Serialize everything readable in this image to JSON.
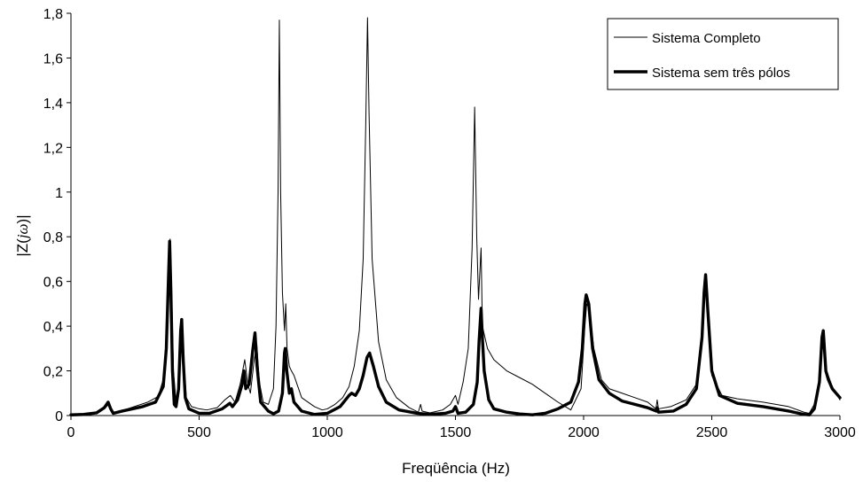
{
  "chart_data": {
    "type": "line",
    "title": "",
    "xlabel": "Freqüência (Hz)",
    "ylabel_parts": {
      "prefix": "|Z(",
      "j": "j",
      "omega": "ω",
      "suffix": ")|"
    },
    "xlim": [
      0,
      3000
    ],
    "ylim": [
      0,
      1.8
    ],
    "x_ticks": [
      {
        "value": 0,
        "label": "0"
      },
      {
        "value": 500,
        "label": "500"
      },
      {
        "value": 1000,
        "label": "1000"
      },
      {
        "value": 1500,
        "label": "1500"
      },
      {
        "value": 2000,
        "label": "2000"
      },
      {
        "value": 2500,
        "label": "2500"
      },
      {
        "value": 3000,
        "label": "3000"
      }
    ],
    "y_ticks": [
      {
        "value": 0,
        "label": "0"
      },
      {
        "value": 0.2,
        "label": "0,2"
      },
      {
        "value": 0.4,
        "label": "0,4"
      },
      {
        "value": 0.6,
        "label": "0,6"
      },
      {
        "value": 0.8,
        "label": "0,8"
      },
      {
        "value": 1.0,
        "label": "1"
      },
      {
        "value": 1.2,
        "label": "1,2"
      },
      {
        "value": 1.4,
        "label": "1,4"
      },
      {
        "value": 1.6,
        "label": "1,6"
      },
      {
        "value": 1.8,
        "label": "1,8"
      }
    ],
    "grid": false,
    "legend_position": "top-right",
    "series": [
      {
        "name": "Sistema Completo",
        "style": "thin",
        "color": "#000000",
        "points": [
          [
            0,
            0.003
          ],
          [
            50,
            0.006
          ],
          [
            100,
            0.013
          ],
          [
            130,
            0.03
          ],
          [
            147,
            0.05
          ],
          [
            160,
            0.02
          ],
          [
            175,
            0.012
          ],
          [
            220,
            0.03
          ],
          [
            300,
            0.06
          ],
          [
            340,
            0.085
          ],
          [
            365,
            0.18
          ],
          [
            375,
            0.35
          ],
          [
            383,
            0.72
          ],
          [
            387,
            0.79
          ],
          [
            393,
            0.55
          ],
          [
            400,
            0.2
          ],
          [
            410,
            0.06
          ],
          [
            420,
            0.1
          ],
          [
            430,
            0.35
          ],
          [
            434,
            0.42
          ],
          [
            440,
            0.25
          ],
          [
            450,
            0.08
          ],
          [
            470,
            0.04
          ],
          [
            500,
            0.03
          ],
          [
            530,
            0.025
          ],
          [
            570,
            0.035
          ],
          [
            600,
            0.07
          ],
          [
            622,
            0.09
          ],
          [
            640,
            0.06
          ],
          [
            660,
            0.14
          ],
          [
            678,
            0.25
          ],
          [
            690,
            0.14
          ],
          [
            700,
            0.1
          ],
          [
            715,
            0.25
          ],
          [
            725,
            0.32
          ],
          [
            735,
            0.15
          ],
          [
            750,
            0.06
          ],
          [
            770,
            0.05
          ],
          [
            790,
            0.12
          ],
          [
            800,
            0.4
          ],
          [
            808,
            1.0
          ],
          [
            813,
            1.77
          ],
          [
            818,
            1.0
          ],
          [
            825,
            0.55
          ],
          [
            833,
            0.38
          ],
          [
            838,
            0.5
          ],
          [
            843,
            0.3
          ],
          [
            852,
            0.22
          ],
          [
            860,
            0.2
          ],
          [
            870,
            0.18
          ],
          [
            900,
            0.08
          ],
          [
            950,
            0.04
          ],
          [
            980,
            0.025
          ],
          [
            1000,
            0.03
          ],
          [
            1030,
            0.05
          ],
          [
            1060,
            0.08
          ],
          [
            1085,
            0.13
          ],
          [
            1105,
            0.22
          ],
          [
            1125,
            0.38
          ],
          [
            1140,
            0.7
          ],
          [
            1150,
            1.3
          ],
          [
            1157,
            1.78
          ],
          [
            1163,
            1.35
          ],
          [
            1175,
            0.7
          ],
          [
            1200,
            0.33
          ],
          [
            1230,
            0.16
          ],
          [
            1270,
            0.08
          ],
          [
            1320,
            0.035
          ],
          [
            1355,
            0.015
          ],
          [
            1364,
            0.05
          ],
          [
            1370,
            0.02
          ],
          [
            1400,
            0.012
          ],
          [
            1450,
            0.025
          ],
          [
            1480,
            0.05
          ],
          [
            1500,
            0.09
          ],
          [
            1510,
            0.05
          ],
          [
            1530,
            0.15
          ],
          [
            1550,
            0.3
          ],
          [
            1565,
            0.75
          ],
          [
            1575,
            1.38
          ],
          [
            1583,
            0.8
          ],
          [
            1590,
            0.52
          ],
          [
            1600,
            0.75
          ],
          [
            1605,
            0.4
          ],
          [
            1625,
            0.3
          ],
          [
            1650,
            0.25
          ],
          [
            1700,
            0.2
          ],
          [
            1750,
            0.17
          ],
          [
            1800,
            0.14
          ],
          [
            1850,
            0.1
          ],
          [
            1900,
            0.06
          ],
          [
            1950,
            0.025
          ],
          [
            1990,
            0.12
          ],
          [
            2005,
            0.4
          ],
          [
            2012,
            0.5
          ],
          [
            2022,
            0.48
          ],
          [
            2040,
            0.3
          ],
          [
            2070,
            0.16
          ],
          [
            2100,
            0.12
          ],
          [
            2150,
            0.1
          ],
          [
            2200,
            0.08
          ],
          [
            2250,
            0.06
          ],
          [
            2282,
            0.03
          ],
          [
            2287,
            0.07
          ],
          [
            2292,
            0.03
          ],
          [
            2340,
            0.04
          ],
          [
            2400,
            0.07
          ],
          [
            2440,
            0.14
          ],
          [
            2465,
            0.4
          ],
          [
            2477,
            0.62
          ],
          [
            2485,
            0.45
          ],
          [
            2500,
            0.18
          ],
          [
            2540,
            0.09
          ],
          [
            2600,
            0.075
          ],
          [
            2700,
            0.06
          ],
          [
            2800,
            0.04
          ],
          [
            2860,
            0.015
          ],
          [
            2880,
            0.01
          ],
          [
            2900,
            0.05
          ],
          [
            2920,
            0.15
          ],
          [
            2933,
            0.35
          ],
          [
            2938,
            0.38
          ],
          [
            2948,
            0.2
          ],
          [
            2970,
            0.13
          ],
          [
            3000,
            0.07
          ]
        ]
      },
      {
        "name": "Sistema sem três pólos",
        "style": "thick",
        "color": "#000000",
        "points": [
          [
            0,
            0.003
          ],
          [
            50,
            0.005
          ],
          [
            100,
            0.012
          ],
          [
            130,
            0.035
          ],
          [
            145,
            0.06
          ],
          [
            155,
            0.03
          ],
          [
            165,
            0.01
          ],
          [
            200,
            0.02
          ],
          [
            280,
            0.04
          ],
          [
            330,
            0.06
          ],
          [
            360,
            0.13
          ],
          [
            372,
            0.3
          ],
          [
            380,
            0.6
          ],
          [
            385,
            0.78
          ],
          [
            390,
            0.55
          ],
          [
            396,
            0.2
          ],
          [
            403,
            0.05
          ],
          [
            410,
            0.04
          ],
          [
            420,
            0.12
          ],
          [
            428,
            0.38
          ],
          [
            432,
            0.43
          ],
          [
            438,
            0.25
          ],
          [
            446,
            0.08
          ],
          [
            460,
            0.03
          ],
          [
            500,
            0.01
          ],
          [
            540,
            0.01
          ],
          [
            590,
            0.03
          ],
          [
            620,
            0.055
          ],
          [
            630,
            0.04
          ],
          [
            650,
            0.07
          ],
          [
            668,
            0.14
          ],
          [
            675,
            0.2
          ],
          [
            682,
            0.12
          ],
          [
            695,
            0.14
          ],
          [
            710,
            0.3
          ],
          [
            718,
            0.37
          ],
          [
            726,
            0.22
          ],
          [
            740,
            0.06
          ],
          [
            770,
            0.02
          ],
          [
            790,
            0.008
          ],
          [
            810,
            0.02
          ],
          [
            825,
            0.1
          ],
          [
            833,
            0.28
          ],
          [
            836,
            0.3
          ],
          [
            842,
            0.2
          ],
          [
            852,
            0.1
          ],
          [
            860,
            0.12
          ],
          [
            870,
            0.06
          ],
          [
            900,
            0.02
          ],
          [
            950,
            0.005
          ],
          [
            1000,
            0.01
          ],
          [
            1050,
            0.04
          ],
          [
            1085,
            0.09
          ],
          [
            1095,
            0.1
          ],
          [
            1110,
            0.09
          ],
          [
            1125,
            0.12
          ],
          [
            1140,
            0.18
          ],
          [
            1155,
            0.26
          ],
          [
            1165,
            0.28
          ],
          [
            1180,
            0.22
          ],
          [
            1200,
            0.13
          ],
          [
            1230,
            0.06
          ],
          [
            1280,
            0.025
          ],
          [
            1350,
            0.01
          ],
          [
            1400,
            0.005
          ],
          [
            1460,
            0.01
          ],
          [
            1490,
            0.02
          ],
          [
            1500,
            0.04
          ],
          [
            1510,
            0.01
          ],
          [
            1540,
            0.015
          ],
          [
            1570,
            0.05
          ],
          [
            1585,
            0.15
          ],
          [
            1592,
            0.33
          ],
          [
            1600,
            0.48
          ],
          [
            1605,
            0.35
          ],
          [
            1612,
            0.2
          ],
          [
            1630,
            0.07
          ],
          [
            1650,
            0.03
          ],
          [
            1700,
            0.015
          ],
          [
            1750,
            0.007
          ],
          [
            1800,
            0.003
          ],
          [
            1850,
            0.01
          ],
          [
            1900,
            0.03
          ],
          [
            1950,
            0.06
          ],
          [
            1980,
            0.15
          ],
          [
            1995,
            0.3
          ],
          [
            2005,
            0.5
          ],
          [
            2010,
            0.54
          ],
          [
            2020,
            0.5
          ],
          [
            2035,
            0.3
          ],
          [
            2060,
            0.16
          ],
          [
            2100,
            0.1
          ],
          [
            2150,
            0.065
          ],
          [
            2200,
            0.05
          ],
          [
            2250,
            0.035
          ],
          [
            2283,
            0.02
          ],
          [
            2287,
            0.035
          ],
          [
            2292,
            0.015
          ],
          [
            2350,
            0.02
          ],
          [
            2400,
            0.05
          ],
          [
            2440,
            0.12
          ],
          [
            2462,
            0.35
          ],
          [
            2470,
            0.55
          ],
          [
            2476,
            0.63
          ],
          [
            2484,
            0.48
          ],
          [
            2500,
            0.2
          ],
          [
            2530,
            0.09
          ],
          [
            2600,
            0.055
          ],
          [
            2700,
            0.04
          ],
          [
            2800,
            0.02
          ],
          [
            2860,
            0.005
          ],
          [
            2880,
            0.003
          ],
          [
            2900,
            0.03
          ],
          [
            2920,
            0.15
          ],
          [
            2930,
            0.35
          ],
          [
            2935,
            0.38
          ],
          [
            2945,
            0.2
          ],
          [
            2955,
            0.16
          ],
          [
            2970,
            0.12
          ],
          [
            3000,
            0.08
          ]
        ]
      }
    ]
  }
}
